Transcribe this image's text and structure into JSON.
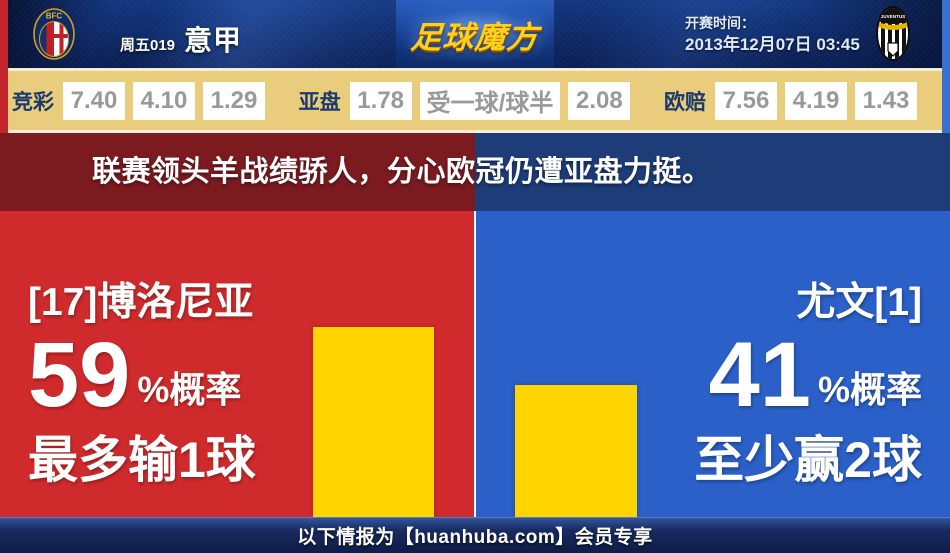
{
  "header": {
    "match_code": "周五019",
    "league": "意甲",
    "brand": "足球魔方",
    "kickoff_label": "开赛时间：",
    "kickoff_time": "2013年12月07日 03:45",
    "home_badge_text": "BFC",
    "away_badge_text": "JUVENTUS"
  },
  "odds_bar": {
    "groups": [
      {
        "label": "竞彩",
        "values": [
          "7.40",
          "4.10",
          "1.29"
        ]
      },
      {
        "label": "亚盘",
        "values": [
          "1.78",
          "受一球/球半",
          "2.08"
        ]
      },
      {
        "label": "欧赔",
        "values": [
          "7.56",
          "4.19",
          "1.43"
        ]
      }
    ]
  },
  "headline": "联赛领头羊战绩骄人，分心欧冠仍遭亚盘力挺。",
  "prediction": {
    "home": {
      "team": "[17]博洛尼亚",
      "probability": "59",
      "probability_suffix": "%概率",
      "outcome": "最多输1球",
      "bar_percent": 59
    },
    "away": {
      "team": "尤文[1]",
      "probability": "41",
      "probability_suffix": "%概率",
      "outcome": "至少赢2球",
      "bar_percent": 41
    }
  },
  "footer": {
    "text": "以下情报为【huanhuba.com】会员专享"
  },
  "colors": {
    "header_navy_hi": "#133781",
    "header_navy_lo": "#0a1e52",
    "accent_gold": "#ffcf1e",
    "odds_bg": "#e9cc7c",
    "odds_label": "#1a3a6b",
    "odds_value": "#999999",
    "maroon": "#7b1b20",
    "navy_band": "#1e3c78",
    "home_red": "#d02b2c",
    "away_blue": "#2a60c8",
    "bar_yellow": "#ffd400",
    "edge_red": "#c2252c",
    "edge_blue": "#3b6fd1"
  }
}
